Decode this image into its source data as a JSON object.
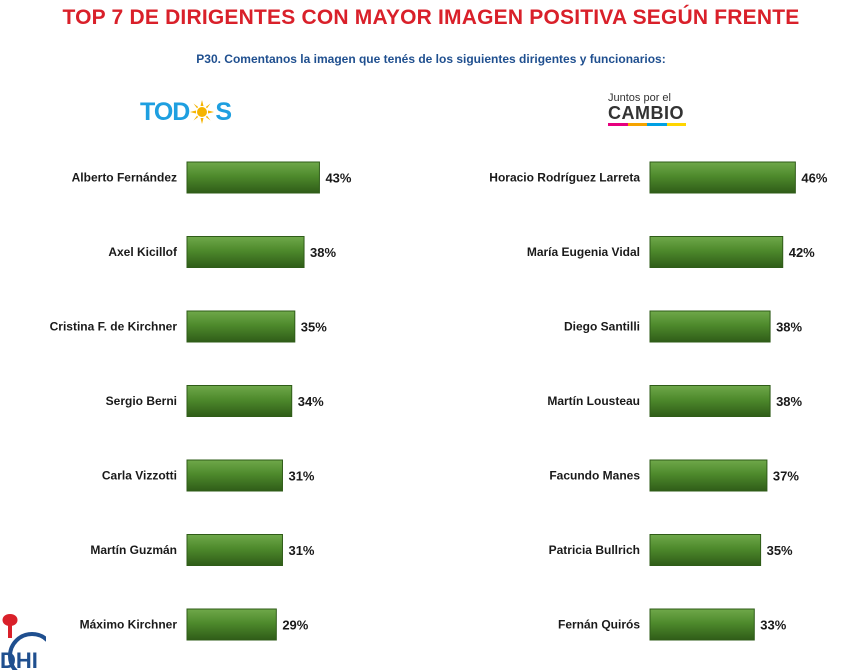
{
  "title": "TOP 7 DE DIRIGENTES CON MAYOR IMAGEN POSITIVA SEGÚN FRENTE",
  "subtitle": "P30. Comentanos la imagen que tenés de los siguientes dirigentes y funcionarios:",
  "logos": {
    "left": {
      "text_a": "TOD",
      "text_b": "S",
      "icon": "sun-icon"
    },
    "right": {
      "small": "Juntos por el",
      "big": "CAMBIO"
    },
    "corner": {
      "text": "DHI"
    }
  },
  "colors": {
    "bar": "#4e8a2c",
    "bar_dark": "#2f5c18",
    "bar_light": "#6fa84a",
    "title": "#d9202a",
    "subtitle": "#1f4f8f"
  },
  "chart_data": [
    {
      "type": "bar",
      "orientation": "horizontal",
      "categories": [
        "Alberto Fernández",
        "Axel Kicillof",
        "Cristina F. de Kirchner",
        "Sergio Berni",
        "Carla Vizzotti",
        "Martín Guzmán",
        "Máximo Kirchner"
      ],
      "values": [
        43,
        38,
        35,
        34,
        31,
        31,
        29
      ],
      "labels": [
        "43%",
        "38%",
        "35%",
        "34%",
        "31%",
        "31%",
        "29%"
      ],
      "unit": "%",
      "xlim": [
        0,
        100
      ]
    },
    {
      "type": "bar",
      "orientation": "horizontal",
      "categories": [
        "Horacio Rodríguez Larreta",
        "María Eugenia Vidal",
        "Diego Santilli",
        "Martín Lousteau",
        "Facundo Manes",
        "Patricia Bullrich",
        "Fernán Quirós"
      ],
      "values": [
        46,
        42,
        38,
        38,
        37,
        35,
        33
      ],
      "labels": [
        "46%",
        "42%",
        "38%",
        "38%",
        "37%",
        "35%",
        "33%"
      ],
      "unit": "%",
      "xlim": [
        0,
        100
      ]
    }
  ]
}
